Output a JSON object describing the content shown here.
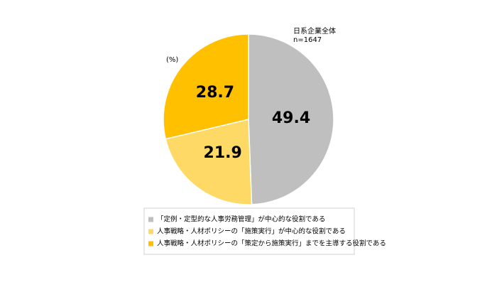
{
  "chart_data": {
    "type": "pie",
    "note": "日系企業全体",
    "sample_size": "n=1647",
    "unit": "(%)",
    "categories": [
      "「定例・定型的な人事労務管理」が中心的な役割である",
      "人事戦略・人材ポリシーの「施策実行」が中心的な役割である",
      "人事戦略・人材ポリシーの「策定から施策実行」までを主導する役割である"
    ],
    "values": [
      49.4,
      21.9,
      28.7
    ],
    "colors": [
      "#bfbfbf",
      "#ffd966",
      "#ffc000"
    ],
    "legend": "bottom"
  }
}
